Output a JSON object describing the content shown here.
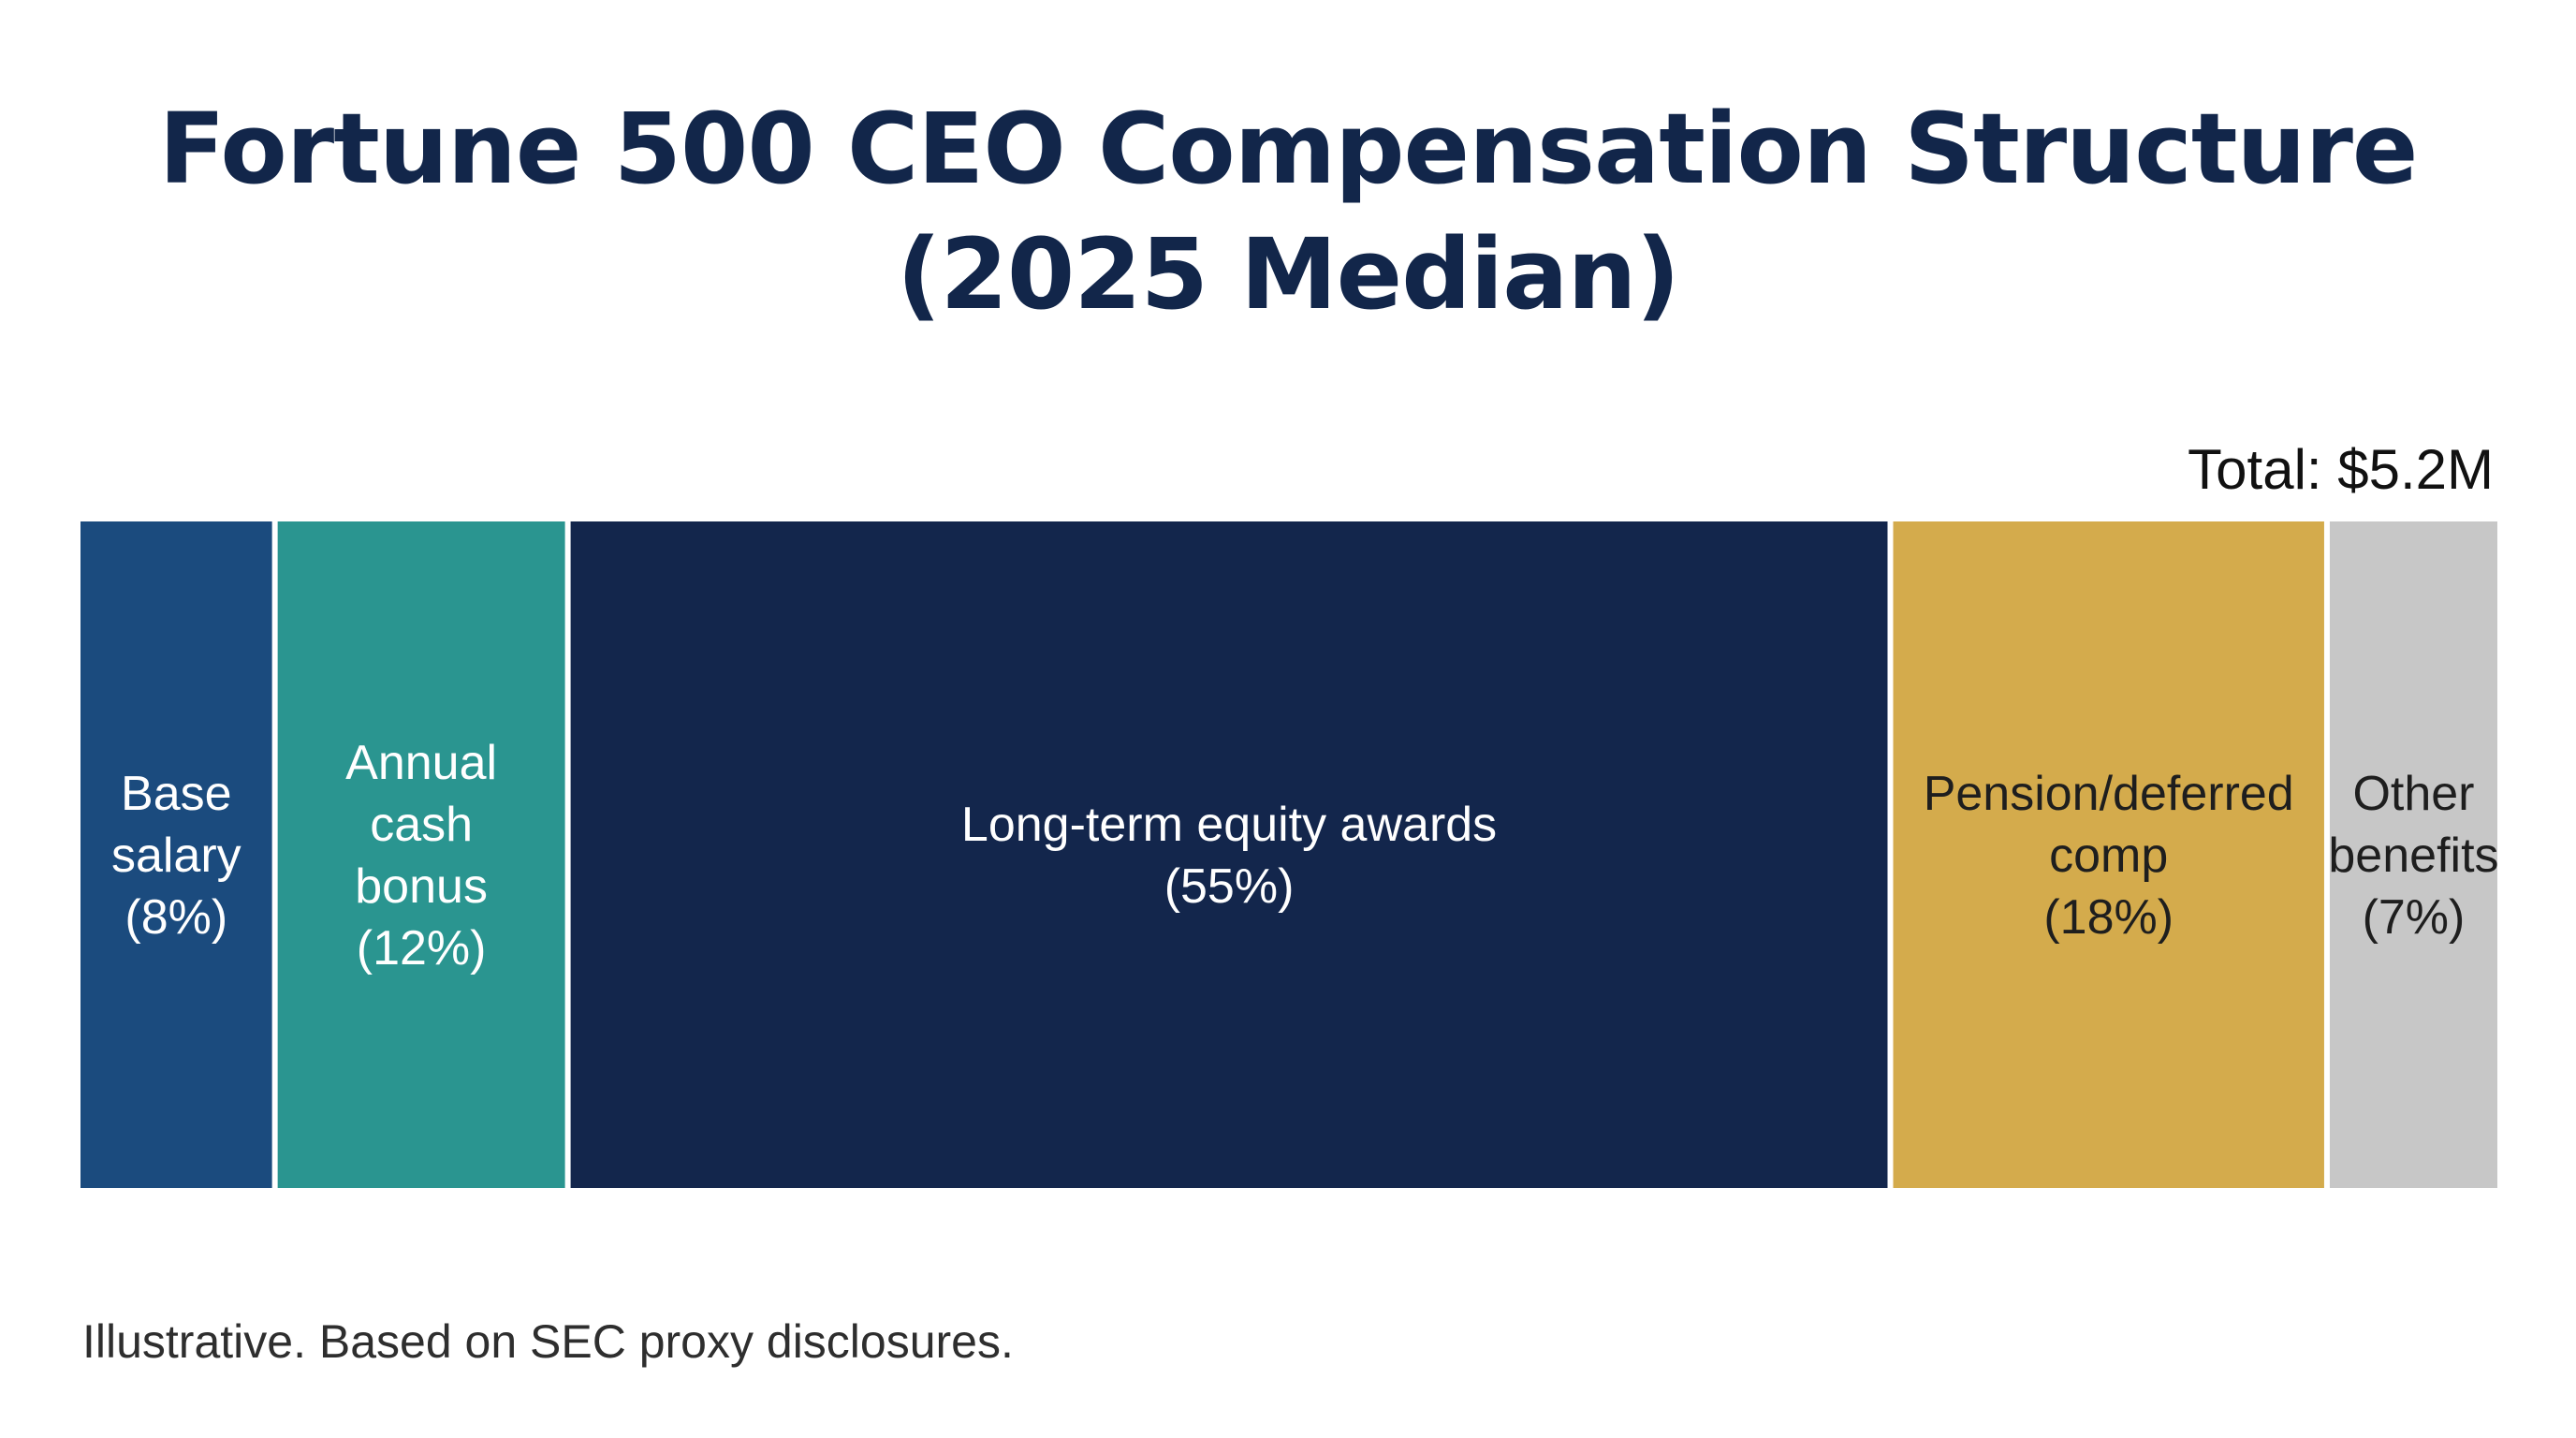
{
  "chart_data": {
    "type": "bar",
    "subtype": "100% stacked horizontal bar",
    "title": "Fortune 500 CEO Compensation Structure (2025 Median)",
    "total_label": "Total: $5.2M",
    "caption": "Illustrative. Based on SEC proxy disclosures.",
    "segments": [
      {
        "label_lines": [
          "Base",
          "salary",
          "(8%)"
        ],
        "value": 8,
        "color": "#1b4b7e",
        "text_color": "#ffffff"
      },
      {
        "label_lines": [
          "Annual",
          "cash",
          "bonus",
          "(12%)"
        ],
        "value": 12,
        "color": "#2a9590",
        "text_color": "#ffffff"
      },
      {
        "label_lines": [
          "Long-term equity awards",
          "(55%)"
        ],
        "value": 55,
        "color": "#13264c",
        "text_color": "#ffffff"
      },
      {
        "label_lines": [
          "Pension/deferred",
          "comp",
          "(18%)"
        ],
        "value": 18,
        "color": "#d4ab4c",
        "text_color": "#1e1e1e"
      },
      {
        "label_lines": [
          "Other",
          "benefits",
          "(7%)"
        ],
        "value": 7,
        "color": "#c7c7c7",
        "text_color": "#1e1e1e"
      }
    ]
  }
}
